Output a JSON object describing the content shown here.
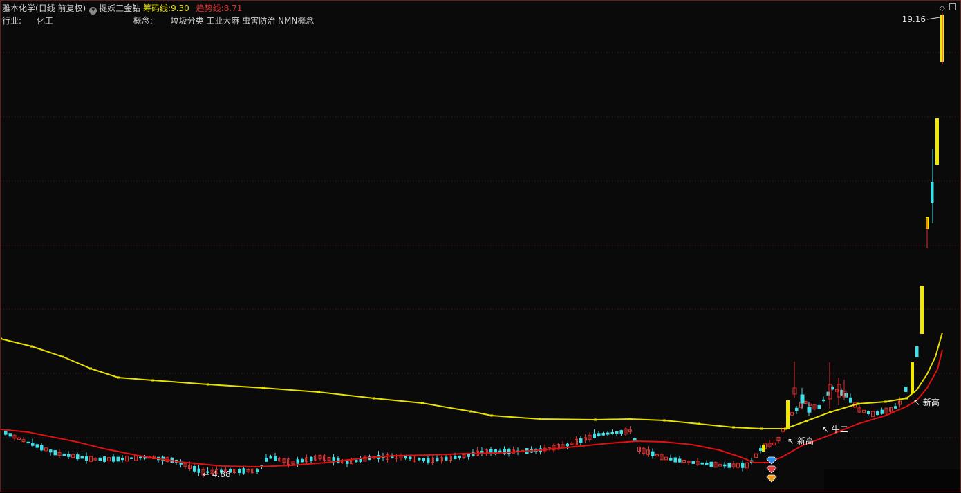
{
  "header": {
    "stock_name": "雅本化学",
    "period": "(日线 前复权)",
    "formula_name": "捉妖三金钻",
    "chip_line_label": "筹码线:",
    "chip_line_value": "9.30",
    "trend_line_label": "趋势线:",
    "trend_line_value": "8.71",
    "industry_label": "行业:",
    "industry_value": "化工",
    "concept_label": "概念:",
    "concept_value": "垃圾分类 工业大麻 虫害防治 NMN概念"
  },
  "colors": {
    "up": "#e03030",
    "down": "#40e0e8",
    "limit_up": "#f0e800",
    "chip_line": "#e8e000",
    "trend_line": "#e01010",
    "background": "#0a0a0a",
    "grid": "#5a1818"
  },
  "annotations": {
    "max_price": "19.16",
    "min_price": "4.88",
    "new_high_1": "新高",
    "bull_2": "牛二",
    "new_high_2": "新高"
  },
  "chart_data": {
    "type": "candlestick",
    "title": "",
    "y_range": [
      4.5,
      20
    ],
    "grid": true,
    "series": [
      {
        "name": "筹码线",
        "last_value": 9.3
      },
      {
        "name": "趋势线",
        "last_value": 8.71
      }
    ],
    "max_marker": 19.16,
    "min_marker": 4.88
  }
}
